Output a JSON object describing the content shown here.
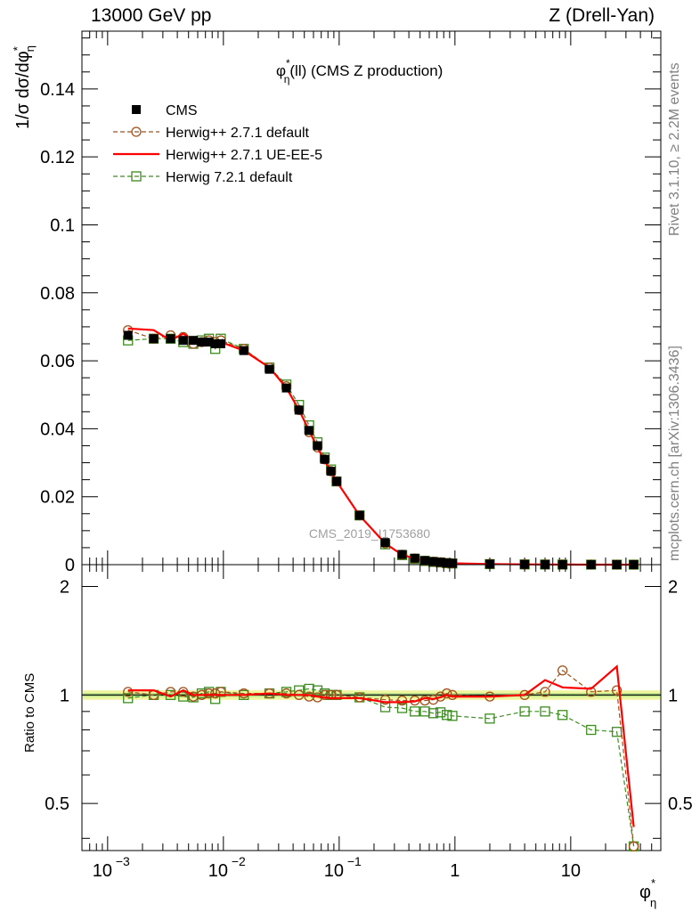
{
  "header": {
    "left": "13000 GeV pp",
    "right": "Z (Drell-Yan)"
  },
  "side_labels": {
    "rivet": "Rivet 3.1.10, ≥ 2.2M events",
    "mcplots": "mcplots.cern.ch [arXiv:1306.3436]"
  },
  "chart_data": [
    {
      "type": "line",
      "title": "φ*η(ll) (CMS Z production)",
      "ylabel": "1/σ dσ/dφ*η",
      "xlabel": "φ*η",
      "xscale": "log",
      "xlim": [
        0.0006,
        60
      ],
      "ylim": [
        0,
        0.157
      ],
      "yticks": [
        0,
        0.02,
        0.04,
        0.06,
        0.08,
        0.1,
        0.12,
        0.14
      ],
      "ytick_labels": [
        "0",
        "0.02",
        "0.04",
        "0.06",
        "0.08",
        "0.1",
        "0.12",
        "0.14"
      ],
      "watermark": "CMS_2019_I1753680",
      "legend_position": "top-left",
      "legend": [
        "CMS",
        "Herwig++ 2.7.1 default",
        "Herwig++ 2.7.1 UE-EE-5",
        "Herwig 7.2.1 default"
      ],
      "x": [
        0.0015,
        0.0025,
        0.0035,
        0.0045,
        0.0055,
        0.0065,
        0.0075,
        0.0085,
        0.0095,
        0.015,
        0.025,
        0.035,
        0.045,
        0.055,
        0.065,
        0.075,
        0.085,
        0.095,
        0.15,
        0.25,
        0.35,
        0.45,
        0.55,
        0.65,
        0.75,
        0.85,
        0.95,
        2,
        4,
        6,
        8.5,
        15,
        25,
        35
      ],
      "series": [
        {
          "name": "CMS",
          "color": "#000000",
          "marker": "filled-square",
          "y": [
            0.0675,
            0.0665,
            0.0665,
            0.066,
            0.066,
            0.0655,
            0.0655,
            0.065,
            0.065,
            0.063,
            0.0575,
            0.052,
            0.0455,
            0.0395,
            0.035,
            0.031,
            0.0275,
            0.0245,
            0.0145,
            0.0065,
            0.003,
            0.0019,
            0.0012,
            0.0009,
            0.0007,
            0.0005,
            0.0004,
            0.00018,
            8e-05,
            5e-05,
            3e-05,
            1e-05,
            6e-06,
            4e-06
          ]
        },
        {
          "name": "Herwig++ 2.7.1 default",
          "color": "#a0521a",
          "marker": "open-circle",
          "dashed": true,
          "y": [
            0.069,
            0.0665,
            0.0675,
            0.067,
            0.065,
            0.0655,
            0.066,
            0.0655,
            0.066,
            0.0635,
            0.058,
            0.0525,
            0.0455,
            0.039,
            0.0345,
            0.031,
            0.0275,
            0.0245,
            0.0145,
            0.0063,
            0.0029,
            0.0018,
            0.00115,
            0.00087,
            0.0007,
            0.0005,
            0.0004,
            0.00018,
            8e-05,
            5e-05,
            3.5e-05,
            1e-05,
            6e-06,
            1.5e-06
          ]
        },
        {
          "name": "Herwig++ 2.7.1 UE-EE-5",
          "color": "#ff0000",
          "marker": "none",
          "y": [
            0.0695,
            0.069,
            0.066,
            0.068,
            0.066,
            0.066,
            0.0655,
            0.0655,
            0.0655,
            0.063,
            0.058,
            0.052,
            0.0455,
            0.0395,
            0.0345,
            0.0305,
            0.0275,
            0.0245,
            0.0145,
            0.0062,
            0.0029,
            0.0018,
            0.0012,
            0.00087,
            0.0007,
            0.0005,
            0.0004,
            0.00018,
            8e-05,
            5.5e-05,
            3.2e-05,
            1.1e-05,
            7.5e-06,
            1.8e-06
          ]
        },
        {
          "name": "Herwig 7.2.1 default",
          "color": "#3c8c1e",
          "marker": "open-square",
          "dashed": true,
          "y": [
            0.066,
            0.0665,
            0.0665,
            0.0655,
            0.065,
            0.066,
            0.0665,
            0.0635,
            0.0665,
            0.0635,
            0.058,
            0.053,
            0.047,
            0.041,
            0.036,
            0.0315,
            0.028,
            0.0245,
            0.0145,
            0.006,
            0.0028,
            0.0017,
            0.0011,
            0.0008,
            0.00065,
            0.00045,
            0.00035,
            0.000155,
            7e-05,
            4.5e-05,
            2.6e-05,
            8e-06,
            4.5e-06,
            1.5e-06
          ]
        }
      ]
    },
    {
      "type": "line",
      "ylabel": "Ratio to CMS",
      "xscale": "log",
      "xlim": [
        0.0006,
        60
      ],
      "ylim": [
        0.37,
        2.3
      ],
      "yscale": "log",
      "yticks": [
        0.5,
        1,
        2
      ],
      "ytick_labels": [
        "0.5",
        "1",
        "2"
      ],
      "xticks": [
        0.001,
        0.01,
        0.1,
        1,
        10
      ],
      "xtick_labels": [
        "10",
        "10",
        "10",
        "1",
        "10"
      ],
      "xtick_exponents": [
        "−3",
        "−2",
        "−1",
        "",
        ""
      ],
      "x": [
        0.0015,
        0.0025,
        0.0035,
        0.0045,
        0.0055,
        0.0065,
        0.0075,
        0.0085,
        0.0095,
        0.015,
        0.025,
        0.035,
        0.045,
        0.055,
        0.065,
        0.075,
        0.085,
        0.095,
        0.15,
        0.25,
        0.35,
        0.45,
        0.55,
        0.65,
        0.75,
        0.85,
        0.95,
        2,
        4,
        6,
        8.5,
        15,
        25,
        35
      ],
      "series": [
        {
          "name": "Herwig++ 2.7.1 default",
          "color": "#a0521a",
          "marker": "open-circle",
          "dashed": true,
          "y": [
            1.02,
            1.0,
            1.02,
            1.02,
            0.99,
            1.0,
            1.01,
            1.01,
            1.02,
            1.01,
            1.01,
            1.01,
            1.0,
            0.99,
            0.985,
            1.0,
            1.0,
            1.0,
            0.985,
            0.97,
            0.965,
            0.965,
            0.965,
            0.97,
            0.99,
            1.01,
            1.0,
            0.99,
            1.0,
            1.02,
            1.17,
            1.02,
            1.03,
            0.38
          ]
        },
        {
          "name": "Herwig++ 2.7.1 UE-EE-5",
          "color": "#ff0000",
          "marker": "none",
          "y": [
            1.03,
            1.03,
            0.99,
            1.03,
            1.0,
            1.0,
            1.0,
            1.0,
            1.0,
            1.0,
            1.01,
            1.0,
            1.0,
            1.0,
            0.99,
            0.985,
            0.98,
            0.98,
            0.98,
            0.955,
            0.955,
            0.96,
            0.98,
            0.975,
            0.985,
            1.0,
            0.99,
            0.99,
            1.0,
            1.1,
            1.05,
            1.04,
            1.2,
            0.43
          ]
        },
        {
          "name": "Herwig 7.2.1 default",
          "color": "#3c8c1e",
          "marker": "open-square",
          "dashed": true,
          "y": [
            0.98,
            1.0,
            1.0,
            0.99,
            0.985,
            1.01,
            1.02,
            0.975,
            1.02,
            1.0,
            1.01,
            1.02,
            1.03,
            1.04,
            1.03,
            1.01,
            1.0,
            1.0,
            0.985,
            0.925,
            0.92,
            0.9,
            0.9,
            0.89,
            0.895,
            0.88,
            0.875,
            0.86,
            0.9,
            0.9,
            0.88,
            0.8,
            0.79,
            0.38
          ]
        }
      ]
    }
  ]
}
